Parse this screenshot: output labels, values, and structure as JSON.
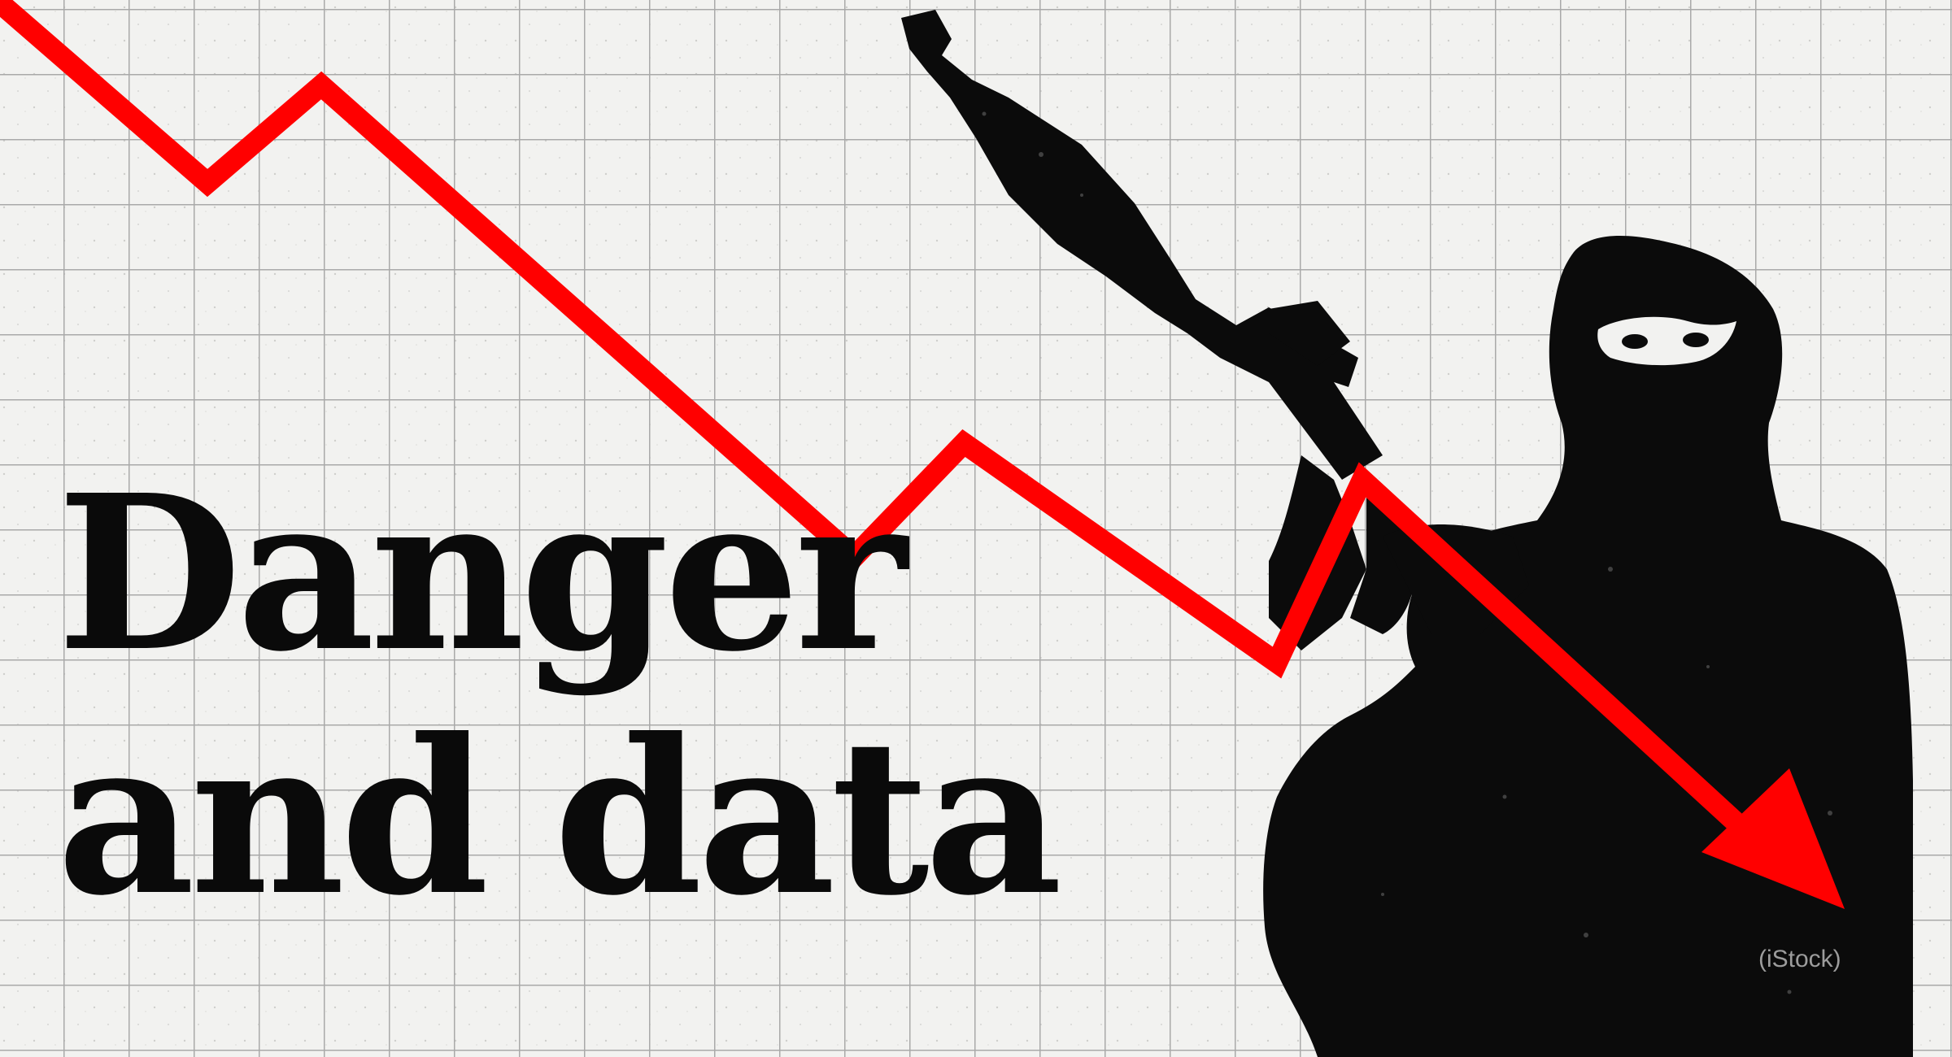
{
  "headline": {
    "line1": "Danger",
    "line2": "and data"
  },
  "credit": "(iStock)",
  "colors": {
    "background": "#f2f2f0",
    "grid": "#a9a9a9",
    "trend_line": "#ff0000",
    "silhouette": "#0b0b0b",
    "headline": "#0a0a0a"
  },
  "icons": [
    "masked-figure-silhouette",
    "rocket-launcher",
    "downward-trend-arrow"
  ]
}
